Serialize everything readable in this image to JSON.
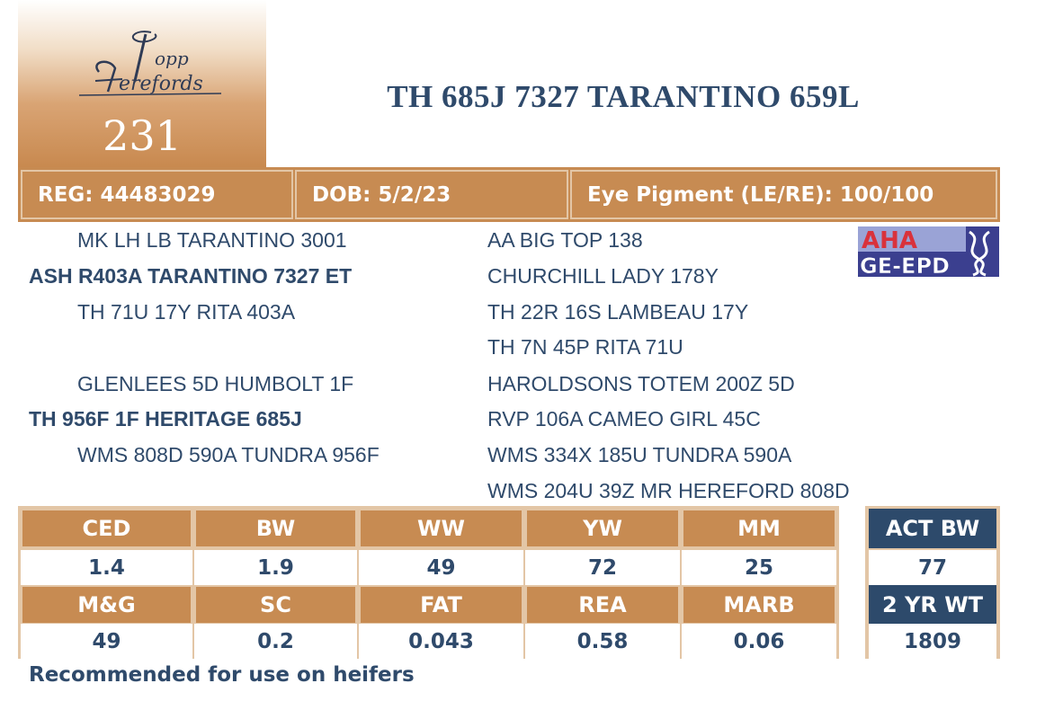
{
  "lot": {
    "number": "231",
    "logo_text": "Topp Herefords"
  },
  "title": "TH 685J 7327 TARANTINO 659L",
  "info": {
    "reg": "REG: 44483029",
    "dob": "DOB: 5/2/23",
    "eye": "Eye Pigment (LE/RE): 100/100"
  },
  "pedigree": {
    "sire_sire": "MK LH LB TARANTINO 3001",
    "sire": "ASH R403A TARANTINO 7327 ET",
    "sire_dam": "TH 71U 17Y RITA 403A",
    "dam_sire": "GLENLEES 5D HUMBOLT 1F",
    "dam": "TH 956F 1F HERITAGE 685J",
    "dam_dam": "WMS 808D 590A TUNDRA 956F",
    "right": [
      "AA BIG TOP 138",
      "CHURCHILL LADY 178Y",
      "TH 22R 16S LAMBEAU 17Y",
      "TH 7N 45P RITA 71U",
      "HAROLDSONS TOTEM 200Z 5D",
      "RVP 106A CAMEO GIRL 45C",
      "WMS 334X 185U TUNDRA 590A",
      "WMS 204U 39Z MR HEREFORD 808D"
    ]
  },
  "aha_logo": {
    "top": "AHA",
    "bottom": "GE-EPD"
  },
  "epd": {
    "row1_heads": [
      "CED",
      "BW",
      "WW",
      "YW",
      "MM"
    ],
    "row1_vals": [
      "1.4",
      "1.9",
      "49",
      "72",
      "25"
    ],
    "row2_heads": [
      "M&G",
      "SC",
      "FAT",
      "REA",
      "MARB"
    ],
    "row2_vals": [
      "49",
      "0.2",
      "0.043",
      "0.58",
      "0.06"
    ]
  },
  "actual": {
    "bw_head": "ACT BW",
    "bw_val": "77",
    "wt_head": "2 YR WT",
    "wt_val": "1809"
  },
  "note": "Recommended for use on heifers",
  "colors": {
    "tan": "#c78b52",
    "navy": "#2d4a6b",
    "text": "#2f4a6b"
  }
}
